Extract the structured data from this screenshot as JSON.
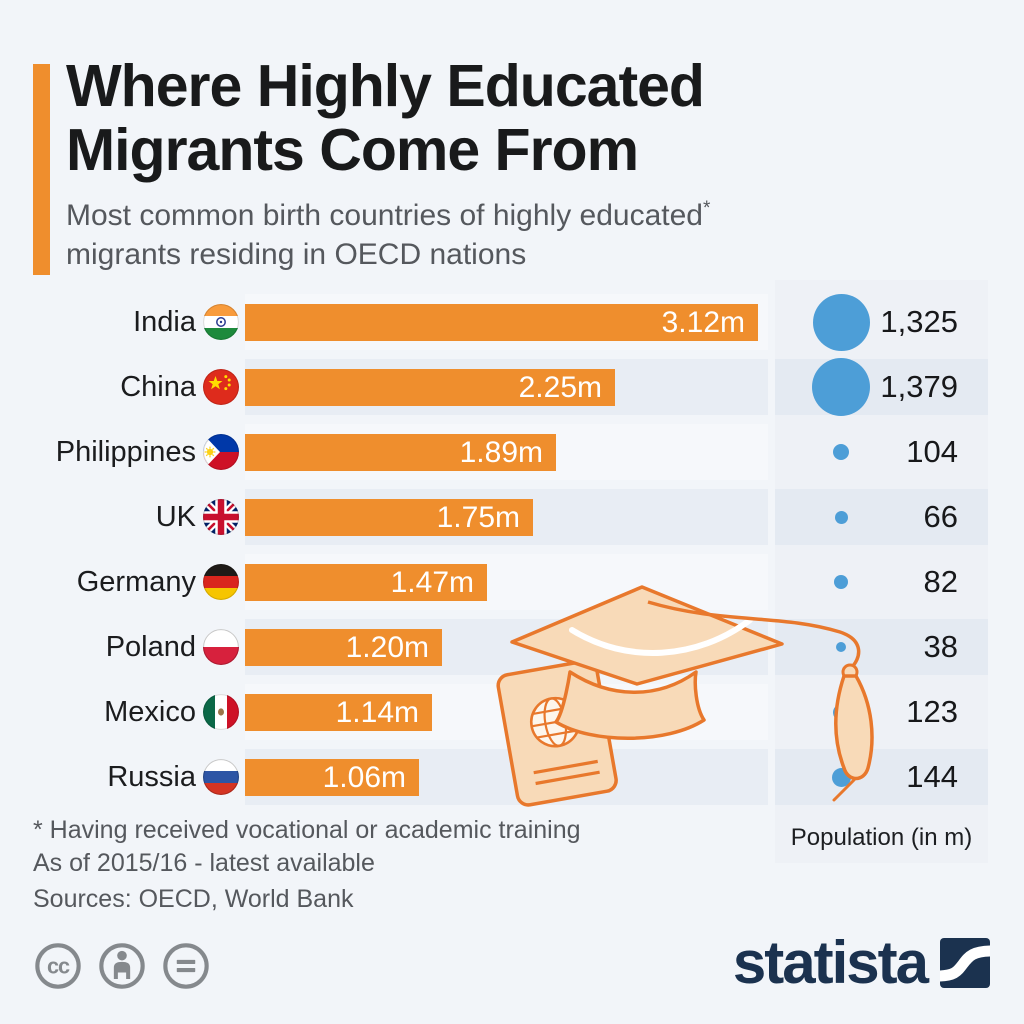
{
  "header": {
    "title_line1": "Where Highly Educated",
    "title_line2": "Migrants Come From",
    "subtitle_line1": "Most common birth countries of highly educated",
    "subtitle_star": "*",
    "subtitle_line2": "migrants residing in OECD nations"
  },
  "rows": [
    {
      "country": "India",
      "flag": "india",
      "value_m": 3.12,
      "value_label": "3.12m",
      "population": 1325,
      "population_label": "1,325"
    },
    {
      "country": "China",
      "flag": "china",
      "value_m": 2.25,
      "value_label": "2.25m",
      "population": 1379,
      "population_label": "1,379"
    },
    {
      "country": "Philippines",
      "flag": "philippines",
      "value_m": 1.89,
      "value_label": "1.89m",
      "population": 104,
      "population_label": "104"
    },
    {
      "country": "UK",
      "flag": "uk",
      "value_m": 1.75,
      "value_label": "1.75m",
      "population": 66,
      "population_label": "66"
    },
    {
      "country": "Germany",
      "flag": "germany",
      "value_m": 1.47,
      "value_label": "1.47m",
      "population": 82,
      "population_label": "82"
    },
    {
      "country": "Poland",
      "flag": "poland",
      "value_m": 1.2,
      "value_label": "1.20m",
      "population": 38,
      "population_label": "38"
    },
    {
      "country": "Mexico",
      "flag": "mexico",
      "value_m": 1.14,
      "value_label": "1.14m",
      "population": 123,
      "population_label": "123"
    },
    {
      "country": "Russia",
      "flag": "russia",
      "value_m": 1.06,
      "value_label": "1.06m",
      "population": 144,
      "population_label": "144"
    }
  ],
  "population_column": {
    "caption": "Population (in m)",
    "bubble_color": "#4d9ed7"
  },
  "footnotes": {
    "line1": "* Having received vocational or academic training",
    "line2": "As of 2015/16 - latest available",
    "sources": "Sources: OECD, World Bank"
  },
  "footer": {
    "brand": "statista",
    "license_icons": [
      "cc-icon",
      "attribution-icon",
      "no-derivatives-icon"
    ]
  },
  "colors": {
    "background": "#f2f5f9",
    "bar_orange": "#ef8e2d",
    "stripe_dark": "#e8edf4",
    "stripe_light": "#f6f8fb",
    "population_block": "#eef1f6",
    "population_stripe_dark": "#e4eaf2",
    "bubble_blue": "#4d9ed7",
    "title_text": "#191a1b",
    "gray_text": "#55585d",
    "brand_navy": "#1b324f",
    "illustration_fill": "#f8dab8",
    "illustration_stroke": "#e8782c"
  },
  "chart_data": {
    "type": "bar",
    "orientation": "horizontal",
    "title": "Where Highly Educated Migrants Come From",
    "subtitle": "Most common birth countries of highly educated* migrants residing in OECD nations",
    "categories": [
      "India",
      "China",
      "Philippines",
      "UK",
      "Germany",
      "Poland",
      "Mexico",
      "Russia"
    ],
    "series": [
      {
        "name": "Highly educated migrants residing in OECD nations",
        "unit": "millions",
        "type": "bar",
        "values": [
          3.12,
          2.25,
          1.89,
          1.75,
          1.47,
          1.2,
          1.14,
          1.06
        ],
        "labels": [
          "3.12m",
          "2.25m",
          "1.89m",
          "1.75m",
          "1.47m",
          "1.20m",
          "1.14m",
          "1.06m"
        ]
      },
      {
        "name": "Population (in m)",
        "unit": "millions",
        "type": "bubble",
        "values": [
          1325,
          1379,
          104,
          66,
          82,
          38,
          123,
          144
        ],
        "labels": [
          "1,325",
          "1,379",
          "104",
          "66",
          "82",
          "38",
          "123",
          "144"
        ]
      }
    ],
    "xlim": [
      0,
      3.2
    ],
    "grid": false,
    "legend": false,
    "notes": [
      "* Having received vocational or academic training",
      "As of 2015/16 - latest available"
    ],
    "sources": "OECD, World Bank"
  }
}
